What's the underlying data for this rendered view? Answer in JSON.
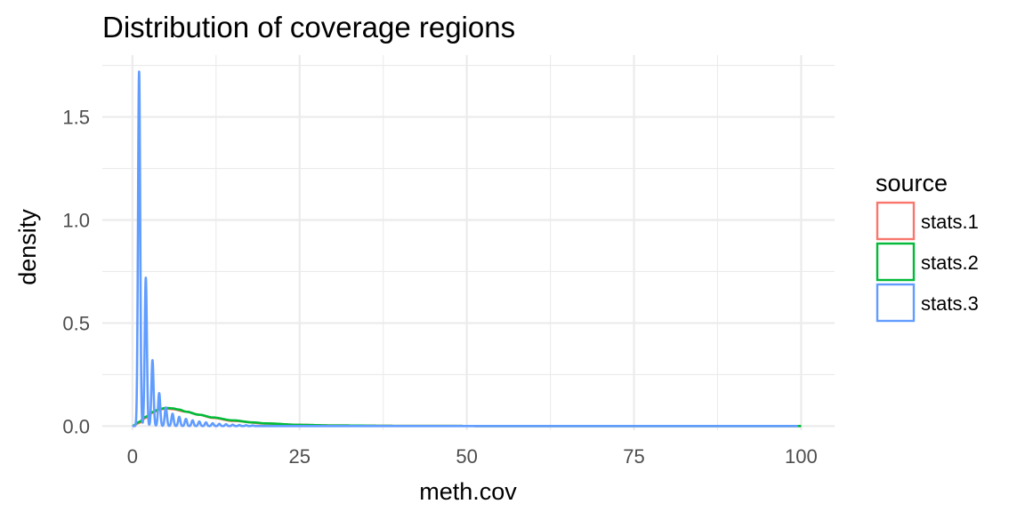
{
  "chart_data": {
    "type": "line",
    "title": "Distribution of coverage regions",
    "xlabel": "meth.cov",
    "ylabel": "density",
    "xlim": [
      -4.5,
      105
    ],
    "ylim": [
      -0.02,
      1.8
    ],
    "xticks": [
      0,
      25,
      50,
      75,
      100
    ],
    "yticks": [
      0.0,
      0.5,
      1.0,
      1.5
    ],
    "xtick_labels": [
      "0",
      "25",
      "50",
      "75",
      "100"
    ],
    "ytick_labels": [
      "0.0",
      "0.5",
      "1.0",
      "1.5"
    ],
    "grid": true,
    "legend": {
      "title": "source",
      "position": "right",
      "entries": [
        "stats.1",
        "stats.2",
        "stats.3"
      ]
    },
    "series": [
      {
        "name": "stats.1",
        "color": "#F8766D",
        "x": [
          0,
          1,
          2,
          3,
          4,
          5,
          6,
          8,
          10,
          12,
          15,
          20,
          25,
          30,
          40,
          60,
          100
        ],
        "y": [
          0.0,
          0.015,
          0.04,
          0.065,
          0.08,
          0.085,
          0.082,
          0.07,
          0.055,
          0.04,
          0.025,
          0.012,
          0.006,
          0.003,
          0.001,
          0.0,
          0.0
        ]
      },
      {
        "name": "stats.2",
        "color": "#00BA38",
        "x": [
          0,
          1,
          2,
          3,
          4,
          5,
          6,
          7,
          8,
          10,
          12,
          15,
          18,
          20,
          25,
          30,
          40,
          60,
          100
        ],
        "y": [
          0.0,
          0.02,
          0.045,
          0.068,
          0.082,
          0.088,
          0.086,
          0.08,
          0.07,
          0.055,
          0.042,
          0.028,
          0.018,
          0.013,
          0.006,
          0.003,
          0.001,
          0.0,
          0.0
        ]
      },
      {
        "name": "stats.3",
        "color": "#619CFF",
        "peaks": [
          {
            "x": 1,
            "y": 1.72
          },
          {
            "x": 2,
            "y": 0.72
          },
          {
            "x": 3,
            "y": 0.32
          },
          {
            "x": 4,
            "y": 0.16
          },
          {
            "x": 5,
            "y": 0.09
          },
          {
            "x": 6,
            "y": 0.06
          },
          {
            "x": 7,
            "y": 0.045
          },
          {
            "x": 8,
            "y": 0.035
          },
          {
            "x": 9,
            "y": 0.028
          },
          {
            "x": 10,
            "y": 0.022
          },
          {
            "x": 11,
            "y": 0.018
          },
          {
            "x": 12,
            "y": 0.014
          },
          {
            "x": 13,
            "y": 0.011
          },
          {
            "x": 14,
            "y": 0.009
          },
          {
            "x": 15,
            "y": 0.007
          },
          {
            "x": 16,
            "y": 0.005
          },
          {
            "x": 17,
            "y": 0.004
          },
          {
            "x": 18,
            "y": 0.003
          }
        ],
        "x_range": [
          0,
          100
        ]
      }
    ]
  }
}
